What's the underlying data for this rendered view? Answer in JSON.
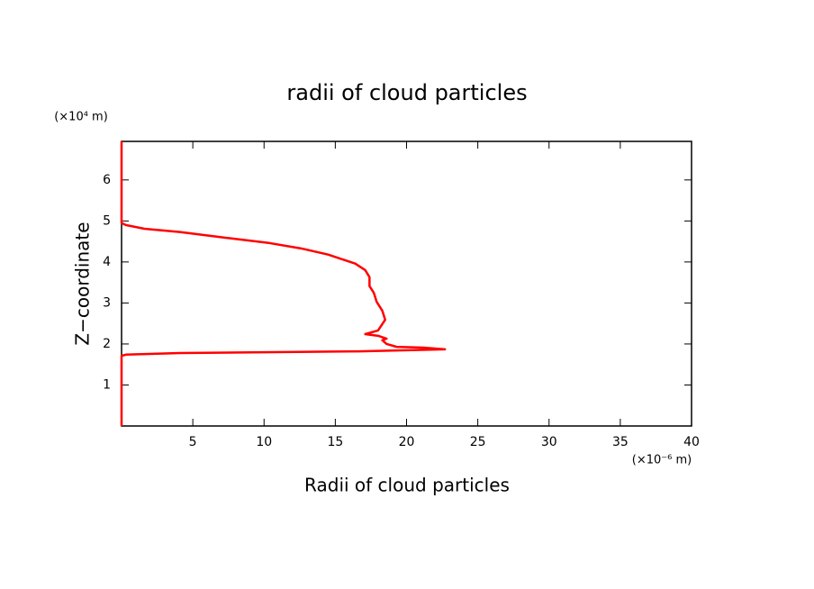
{
  "chart_data": {
    "type": "line",
    "title": "radii of cloud particles",
    "x_label": "Radii of cloud particles",
    "y_label": "Z−coordinate",
    "x_unit": "(×10⁻⁶ m)",
    "y_unit": "(×10⁴ m)",
    "xlim": [
      0,
      40
    ],
    "xticks": [
      5,
      10,
      15,
      20,
      25,
      30,
      35,
      40
    ],
    "ylim": [
      0,
      6.94
    ],
    "yticks": [
      1,
      2,
      3,
      4,
      5,
      6
    ],
    "series": [
      {
        "color": "#ff0000",
        "x": [
          0,
          0,
          0.3,
          4.1,
          16.7,
          22.7,
          21.2,
          19.3,
          18.6,
          18.3,
          18.6,
          18.0,
          17.1,
          18.0,
          18.5,
          18.3,
          17.9,
          17.7,
          17.4,
          17.4,
          17.1,
          16.4,
          14.5,
          12.6,
          10.4,
          7.3,
          4.1,
          1.6,
          0.3,
          0,
          0
        ],
        "values": [
          0,
          1.71,
          1.74,
          1.78,
          1.82,
          1.87,
          1.91,
          1.93,
          2.0,
          2.09,
          2.13,
          2.2,
          2.24,
          2.33,
          2.59,
          2.81,
          3.03,
          3.25,
          3.41,
          3.63,
          3.8,
          3.96,
          4.18,
          4.33,
          4.46,
          4.59,
          4.73,
          4.81,
          4.9,
          4.95,
          6.94
        ]
      }
    ]
  }
}
